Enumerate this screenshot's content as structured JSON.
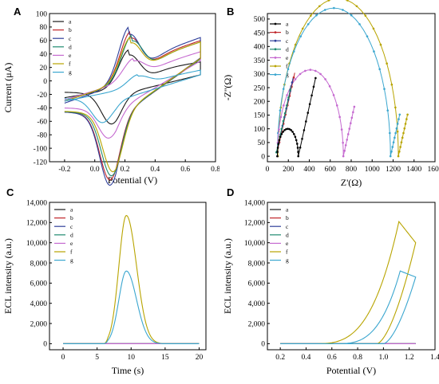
{
  "panel_labels": [
    "A",
    "B",
    "C",
    "D"
  ],
  "colors": {
    "a": "#1a1a1a",
    "b": "#c0252a",
    "c": "#2f3f9a",
    "d": "#1f8a70",
    "e": "#c56ad0",
    "f": "#b8a400",
    "g": "#3aa6cf"
  },
  "chart_data": [
    {
      "id": "A",
      "type": "line",
      "xlabel": "Potential (V)",
      "ylabel": "Current (μA)",
      "xlim": [
        -0.3,
        0.8
      ],
      "ylim": [
        -120,
        100
      ],
      "xticks": [
        "-0.2",
        "0.0",
        "0.2",
        "0.4",
        "0.6",
        "0.8"
      ],
      "xtick_values": [
        -0.2,
        0.0,
        0.2,
        0.4,
        0.6,
        0.8
      ],
      "yticks": [
        "-120",
        "-100",
        "-80",
        "-60",
        "-40",
        "-20",
        "0",
        "20",
        "40",
        "60",
        "80",
        "100"
      ],
      "ytick_values": [
        -120,
        -100,
        -80,
        -60,
        -40,
        -20,
        0,
        20,
        40,
        60,
        80,
        100
      ],
      "legend": [
        "a",
        "b",
        "c",
        "d",
        "e",
        "f",
        "g"
      ],
      "legend_position": "top-left",
      "series": [
        {
          "name": "a",
          "color": "#1a1a1a",
          "ipa": 55,
          "ipc": -42,
          "epa": 0.23,
          "epc": 0.11,
          "base_up": 10,
          "base_down": -22,
          "start": -25
        },
        {
          "name": "b",
          "color": "#c0252a",
          "ipa": 72,
          "ipc": -90,
          "epa": 0.24,
          "epc": 0.1,
          "base_up": 36,
          "base_down": -57,
          "start": -30
        },
        {
          "name": "c",
          "color": "#2f3f9a",
          "ipa": 80,
          "ipc": -97,
          "epa": 0.23,
          "epc": 0.1,
          "base_up": 38,
          "base_down": -58,
          "start": -33
        },
        {
          "name": "d",
          "color": "#1f8a70",
          "ipa": 66,
          "ipc": -85,
          "epa": 0.25,
          "epc": 0.11,
          "base_up": 36,
          "base_down": -56,
          "start": -30
        },
        {
          "name": "e",
          "color": "#c56ad0",
          "ipa": 31,
          "ipc": -40,
          "epa": 0.26,
          "epc": 0.09,
          "base_up": 33,
          "base_down": -45,
          "start": -28
        },
        {
          "name": "f",
          "color": "#b8a400",
          "ipa": 63,
          "ipc": -80,
          "epa": 0.24,
          "epc": 0.12,
          "base_up": 37,
          "base_down": -55,
          "start": -30
        },
        {
          "name": "g",
          "color": "#3aa6cf",
          "ipa": 18,
          "ipc": -32,
          "epa": 0.29,
          "epc": 0.05,
          "base_up": 10,
          "base_down": -30,
          "start": -30
        }
      ]
    },
    {
      "id": "B",
      "type": "scatter",
      "xlabel": "Z'(Ω)",
      "ylabel": "-Z''(Ω)",
      "xlim": [
        0,
        1600
      ],
      "ylim": [
        -20,
        520
      ],
      "xticks": [
        "0",
        "200",
        "400",
        "600",
        "800",
        "1000",
        "1200",
        "1400",
        "1600"
      ],
      "xtick_values": [
        0,
        200,
        400,
        600,
        800,
        1000,
        1200,
        1400,
        1600
      ],
      "yticks": [
        "0",
        "50",
        "100",
        "150",
        "200",
        "250",
        "300",
        "350",
        "400",
        "450",
        "500"
      ],
      "ytick_values": [
        0,
        50,
        100,
        150,
        200,
        250,
        300,
        350,
        400,
        450,
        500
      ],
      "legend": [
        "a",
        "b",
        "c",
        "d",
        "e",
        "f",
        "g"
      ],
      "legend_position": "top-left",
      "series": [
        {
          "name": "a",
          "color": "#000000",
          "x0": 95,
          "rct": 200,
          "wlen": 300
        },
        {
          "name": "b",
          "color": "#c0252a",
          "x0": 85,
          "rct": 0,
          "wlen": 320
        },
        {
          "name": "c",
          "color": "#2f3f9a",
          "x0": 80,
          "rct": 0,
          "wlen": 300
        },
        {
          "name": "d",
          "color": "#1f8a70",
          "x0": 78,
          "rct": 0,
          "wlen": 270
        },
        {
          "name": "e",
          "color": "#c56ad0",
          "x0": 95,
          "rct": 630,
          "wlen": 190
        },
        {
          "name": "f",
          "color": "#b8a400",
          "x0": 100,
          "rct": 1150,
          "wlen": 160
        },
        {
          "name": "g",
          "color": "#3aa6cf",
          "x0": 95,
          "rct": 1080,
          "wlen": 160
        }
      ]
    },
    {
      "id": "C",
      "type": "line",
      "xlabel": "Time (s)",
      "ylabel": "ECL intensity (a.u.)",
      "xlim": [
        -2,
        21
      ],
      "ylim": [
        -600,
        14000
      ],
      "xticks": [
        "0",
        "5",
        "10",
        "15",
        "20"
      ],
      "xtick_values": [
        0,
        5,
        10,
        15,
        20
      ],
      "yticks": [
        "0",
        "2,000",
        "4,000",
        "6,000",
        "8,000",
        "10,000",
        "12,000",
        "14,000"
      ],
      "ytick_values": [
        0,
        2000,
        4000,
        6000,
        8000,
        10000,
        12000,
        14000
      ],
      "legend": [
        "a",
        "b",
        "c",
        "d",
        "e",
        "f",
        "g"
      ],
      "legend_position": "top-left",
      "series": [
        {
          "name": "a",
          "color": "#1a1a1a",
          "peak": 0
        },
        {
          "name": "b",
          "color": "#c0252a",
          "peak": 0
        },
        {
          "name": "c",
          "color": "#2f3f9a",
          "peak": 0
        },
        {
          "name": "d",
          "color": "#1f8a70",
          "peak": 0
        },
        {
          "name": "e",
          "color": "#c56ad0",
          "peak": 0
        },
        {
          "name": "f",
          "color": "#b8a400",
          "peak": 12700,
          "tpeak": 9.3
        },
        {
          "name": "g",
          "color": "#3aa6cf",
          "peak": 7200,
          "tpeak": 9.3
        }
      ]
    },
    {
      "id": "D",
      "type": "line",
      "xlabel": "Potential (V)",
      "ylabel": "ECL intensity (a.u.)",
      "xlim": [
        0.1,
        1.4
      ],
      "ylim": [
        -600,
        14000
      ],
      "xticks": [
        "0.2",
        "0.4",
        "0.6",
        "0.8",
        "1.0",
        "1.2",
        "1.4"
      ],
      "xtick_values": [
        0.2,
        0.4,
        0.6,
        0.8,
        1.0,
        1.2,
        1.4
      ],
      "yticks": [
        "0",
        "2,000",
        "4,000",
        "6,000",
        "8,000",
        "10,000",
        "12,000",
        "14,000"
      ],
      "ytick_values": [
        0,
        2000,
        4000,
        6000,
        8000,
        10000,
        12000,
        14000
      ],
      "legend": [
        "a",
        "b",
        "c",
        "d",
        "e",
        "f",
        "g"
      ],
      "legend_position": "top-left",
      "series": [
        {
          "name": "a",
          "color": "#1a1a1a",
          "peak": 0
        },
        {
          "name": "b",
          "color": "#c0252a",
          "peak": 0
        },
        {
          "name": "c",
          "color": "#2f3f9a",
          "peak": 0
        },
        {
          "name": "d",
          "color": "#1f8a70",
          "peak": 0
        },
        {
          "name": "e",
          "color": "#c56ad0",
          "peak": 0
        },
        {
          "name": "f",
          "color": "#b8a400",
          "peak": 12100,
          "epeak": 1.12,
          "end_val": 10000
        },
        {
          "name": "g",
          "color": "#3aa6cf",
          "peak": 7200,
          "epeak": 1.13,
          "end_val": 6600
        }
      ]
    }
  ]
}
